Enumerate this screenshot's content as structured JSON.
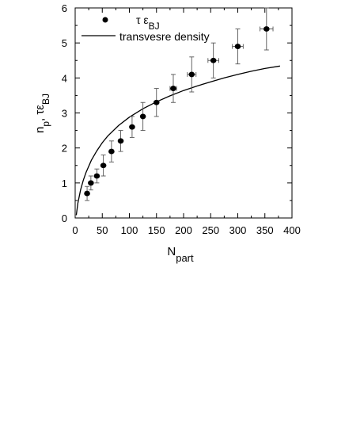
{
  "chart_data": {
    "type": "scatter",
    "xlabel": "N",
    "xlabel_sub": "part",
    "ylabel_parts": [
      "n",
      "p",
      ", τε",
      "BJ"
    ],
    "xlim": [
      0,
      400
    ],
    "ylim": [
      0,
      6
    ],
    "xticks": [
      "0",
      "50",
      "100",
      "150",
      "200",
      "250",
      "300",
      "350",
      "400"
    ],
    "yticks": [
      "0",
      "1",
      "2",
      "3",
      "4",
      "5",
      "6"
    ],
    "grid": false,
    "legend_position": "top-left",
    "series": [
      {
        "name": "τ ε",
        "name_sub": "BJ",
        "kind": "points-with-errorbars",
        "x": [
          22,
          29,
          40,
          52,
          67,
          84,
          105,
          125,
          150,
          181,
          215,
          255,
          300,
          353
        ],
        "y": [
          0.7,
          1.0,
          1.2,
          1.5,
          1.9,
          2.2,
          2.6,
          2.9,
          3.3,
          3.7,
          4.1,
          4.5,
          4.9,
          5.4
        ],
        "xerr": [
          0,
          0,
          0,
          0,
          0,
          0,
          0,
          0,
          0,
          6,
          8,
          10,
          10,
          12
        ],
        "yerr": [
          0.2,
          0.2,
          0.2,
          0.3,
          0.3,
          0.3,
          0.3,
          0.4,
          0.4,
          0.4,
          0.5,
          0.5,
          0.5,
          0.6
        ]
      },
      {
        "name": "transvesre density",
        "kind": "line",
        "x": [
          2,
          5,
          10,
          15,
          20,
          30,
          40,
          50,
          60,
          80,
          100,
          125,
          150,
          175,
          200,
          225,
          250,
          275,
          300,
          325,
          350,
          378
        ],
        "y": [
          0.08,
          0.42,
          0.8,
          1.08,
          1.3,
          1.65,
          1.92,
          2.15,
          2.34,
          2.64,
          2.88,
          3.12,
          3.32,
          3.49,
          3.64,
          3.77,
          3.89,
          4.0,
          4.1,
          4.19,
          4.27,
          4.34
        ]
      }
    ]
  }
}
